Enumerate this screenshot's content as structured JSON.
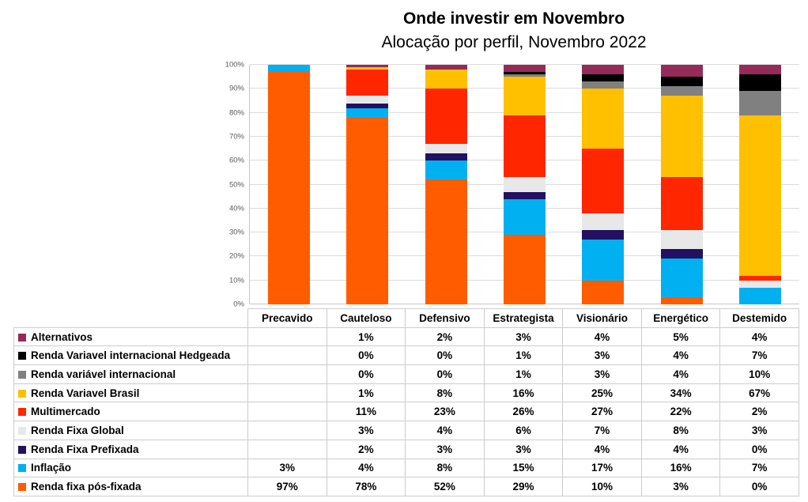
{
  "chart": {
    "title": "Onde investir em Novembro",
    "subtitle": "Alocação por perfil, Novembro 2022"
  },
  "chart_data": {
    "type": "bar",
    "stacked": true,
    "orientation": "vertical",
    "title": "Onde investir em Novembro",
    "subtitle": "Alocação por perfil, Novembro 2022",
    "xlabel": "",
    "ylabel": "",
    "ylim": [
      0,
      100
    ],
    "grid": true,
    "legend_position": "table-left-column",
    "value_suffix": "%",
    "y_ticks": [
      "0%",
      "10%",
      "20%",
      "30%",
      "40%",
      "50%",
      "60%",
      "70%",
      "80%",
      "90%",
      "100%"
    ],
    "categories": [
      "Precavido",
      "Cauteloso",
      "Defensivo",
      "Estrategista",
      "Visionário",
      "Energético",
      "Destemido"
    ],
    "series": [
      {
        "name": "Alternativos",
        "color": "#952b59",
        "values": [
          null,
          1,
          2,
          3,
          4,
          5,
          4
        ]
      },
      {
        "name": "Renda Variavel internacional Hedgeada",
        "color": "#000000",
        "values": [
          null,
          0,
          0,
          1,
          3,
          4,
          7
        ]
      },
      {
        "name": "Renda variável internacional",
        "color": "#808080",
        "values": [
          null,
          0,
          0,
          1,
          3,
          4,
          10
        ]
      },
      {
        "name": "Renda Variavel Brasil",
        "color": "#ffc000",
        "values": [
          null,
          1,
          8,
          16,
          25,
          34,
          67
        ]
      },
      {
        "name": "Multimercado",
        "color": "#ff2600",
        "values": [
          null,
          11,
          23,
          26,
          27,
          22,
          2
        ]
      },
      {
        "name": "Renda Fixa Global",
        "color": "#e8e8e8",
        "values": [
          null,
          3,
          4,
          6,
          7,
          8,
          3
        ]
      },
      {
        "name": "Renda Fixa Prefixada",
        "color": "#241060",
        "values": [
          null,
          2,
          3,
          3,
          4,
          4,
          0
        ]
      },
      {
        "name": "Inflação",
        "color": "#00b0f0",
        "values": [
          3,
          4,
          8,
          15,
          17,
          16,
          7
        ]
      },
      {
        "name": "Renda fixa pós-fixada",
        "color": "#ff5c00",
        "values": [
          97,
          78,
          52,
          29,
          10,
          3,
          0
        ]
      }
    ]
  }
}
